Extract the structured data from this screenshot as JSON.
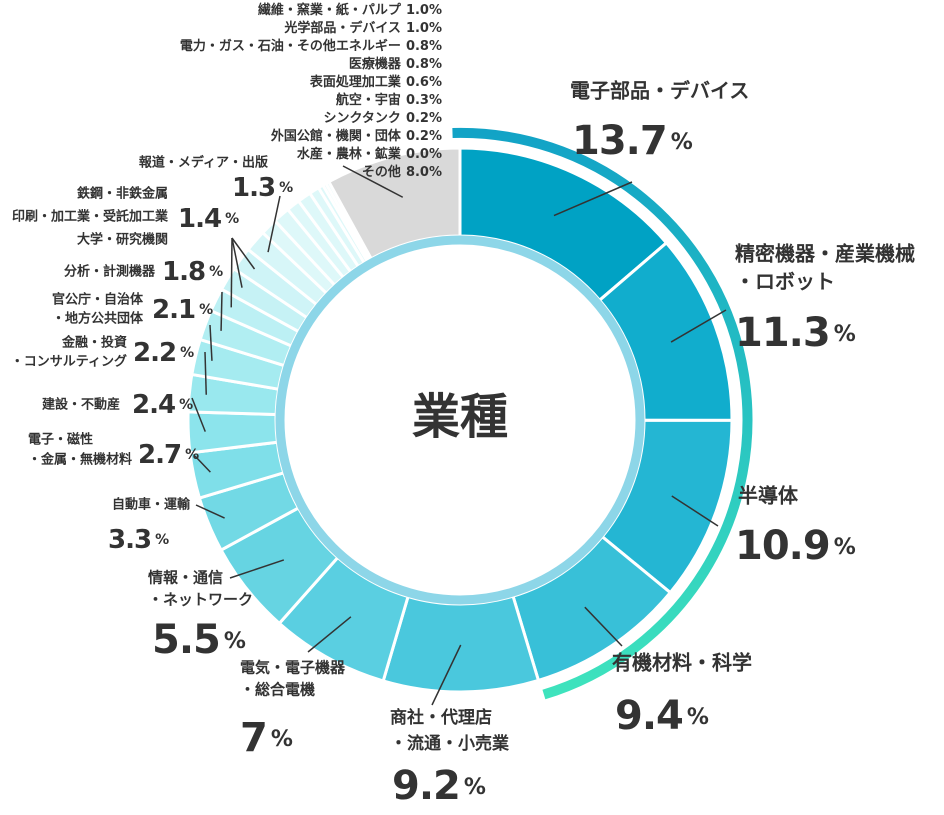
{
  "chart_data": {
    "type": "donut",
    "center_label": "業種",
    "unit": "%",
    "categories": [
      [
        "電子部品・デバイス"
      ],
      [
        "精密機器・産業機械",
        "・ロボット"
      ],
      [
        "半導体"
      ],
      [
        "有機材料・科学"
      ],
      [
        "商社・代理店",
        "・流通・小売業"
      ],
      [
        "電気・電子機器",
        "・総合電機"
      ],
      [
        "情報・通信",
        "・ネットワーク"
      ],
      [
        "自動車・運輸"
      ],
      [
        "電子・磁性",
        "・金属・無機材料"
      ],
      [
        "建設・不動産"
      ],
      [
        "金融・投資",
        "・コンサルティング"
      ],
      [
        "官公庁・自治体",
        "・地方公共団体"
      ],
      [
        "分析・計測機器"
      ],
      [
        "大学・研究機関"
      ],
      [
        "印刷・加工業・受託加工業"
      ],
      [
        "鉄鋼・非鉄金属"
      ],
      [
        "報道・メディア・出版"
      ],
      [
        "繊維・窯業・紙・パルプ"
      ],
      [
        "光学部品・デバイス"
      ],
      [
        "電力・ガス・石油・その他エネルギー"
      ],
      [
        "医療機器"
      ],
      [
        "表面処理加工業"
      ],
      [
        "航空・宇宙"
      ],
      [
        "シンクタンク"
      ],
      [
        "外国公館・機関・団体"
      ],
      [
        "水産・農林・鉱業"
      ],
      [
        "その他"
      ]
    ],
    "values": [
      13.7,
      11.3,
      10.9,
      9.4,
      9.2,
      7,
      5.5,
      3.3,
      2.7,
      2.4,
      2.2,
      2.1,
      1.8,
      1.4,
      1.4,
      1.4,
      1.3,
      1.0,
      1.0,
      0.8,
      0.8,
      0.6,
      0.3,
      0.2,
      0.2,
      0.0,
      8.0
    ],
    "value_labels": [
      null,
      null,
      null,
      null,
      null,
      null,
      null,
      null,
      null,
      null,
      null,
      null,
      null,
      null,
      null,
      null,
      null,
      "1.0",
      "1.0",
      null,
      null,
      null,
      null,
      null,
      null,
      "0.0",
      "8.0"
    ],
    "colors": [
      "#00a2c4",
      "#11adcd",
      "#24b6d3",
      "#38c0d8",
      "#4ac8dd",
      "#5acfe1",
      "#66d4e2",
      "#72d9e5",
      "#7fdfe9",
      "#8ce4ec",
      "#99e8ee",
      "#a5ebf0",
      "#b1eef2",
      "#bcf0f4",
      "#c6f2f5",
      "#cff4f7",
      "#d7f6f8",
      "#def8f9",
      "#def8f9",
      "#def8f9",
      "#def8f9",
      "#def8f9",
      "#def8f9",
      "#def8f9",
      "#def8f9",
      "#def8f9",
      "#d9d9d9"
    ]
  }
}
